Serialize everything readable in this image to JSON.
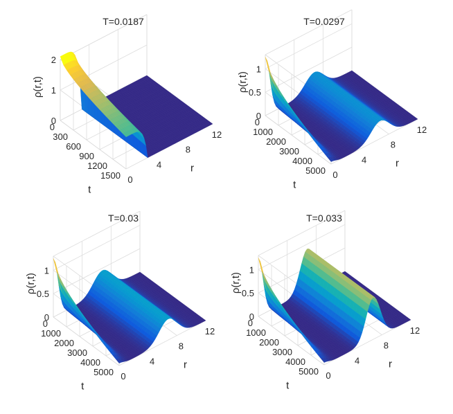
{
  "chart_data": [
    {
      "type": "surface",
      "title": "T=0.0187",
      "xlabel": "r",
      "ylabel": "t",
      "zlabel": "ρ(r,t)",
      "x_ticks": [
        "0",
        "4",
        "8",
        "12"
      ],
      "y_ticks": [
        "0",
        "300",
        "600",
        "900",
        "1200",
        "1500"
      ],
      "z_ticks": [
        "0",
        "1",
        "2"
      ],
      "xlim": [
        0,
        12
      ],
      "ylim": [
        0,
        1500
      ],
      "zlim": [
        0,
        2
      ],
      "peak_start": 2.1,
      "peak_end": 1.05,
      "ridge_height": 0,
      "colormap": "parula"
    },
    {
      "type": "surface",
      "title": "T=0.0297",
      "xlabel": "r",
      "ylabel": "t",
      "zlabel": "ρ(r,t)",
      "x_ticks": [
        "0",
        "4",
        "8",
        "12"
      ],
      "y_ticks": [
        "0",
        "1000",
        "2000",
        "3000",
        "4000",
        "5000"
      ],
      "z_ticks": [
        "0",
        "0.5",
        "1"
      ],
      "xlim": [
        0,
        12
      ],
      "ylim": [
        0,
        5000
      ],
      "zlim": [
        0,
        1.3
      ],
      "peak_start": 1.25,
      "peak_end": 0.05,
      "ridge_height": 0.38,
      "colormap": "parula"
    },
    {
      "type": "surface",
      "title": "T=0.03",
      "xlabel": "r",
      "ylabel": "t",
      "zlabel": "ρ(r,t)",
      "x_ticks": [
        "0",
        "4",
        "8",
        "12"
      ],
      "y_ticks": [
        "0",
        "1000",
        "2000",
        "3000",
        "4000",
        "5000"
      ],
      "z_ticks": [
        "0",
        "0.5",
        "1"
      ],
      "xlim": [
        0,
        12
      ],
      "ylim": [
        0,
        5000
      ],
      "zlim": [
        0,
        1.3
      ],
      "peak_start": 1.25,
      "peak_end": 0.05,
      "ridge_height": 0.45,
      "colormap": "parula"
    },
    {
      "type": "surface",
      "title": "T=0.033",
      "xlabel": "r",
      "ylabel": "t",
      "zlabel": "ρ(r,t)",
      "x_ticks": [
        "0",
        "4",
        "8",
        "12"
      ],
      "y_ticks": [
        "0",
        "1000",
        "2000",
        "3000",
        "4000",
        "5000"
      ],
      "z_ticks": [
        "0",
        "0.5",
        "1"
      ],
      "xlim": [
        0,
        12
      ],
      "ylim": [
        0,
        5000
      ],
      "zlim": [
        0,
        1.3
      ],
      "peak_start": 1.25,
      "peak_end": 0.05,
      "ridge_height": 0.9,
      "colormap": "parula"
    }
  ]
}
